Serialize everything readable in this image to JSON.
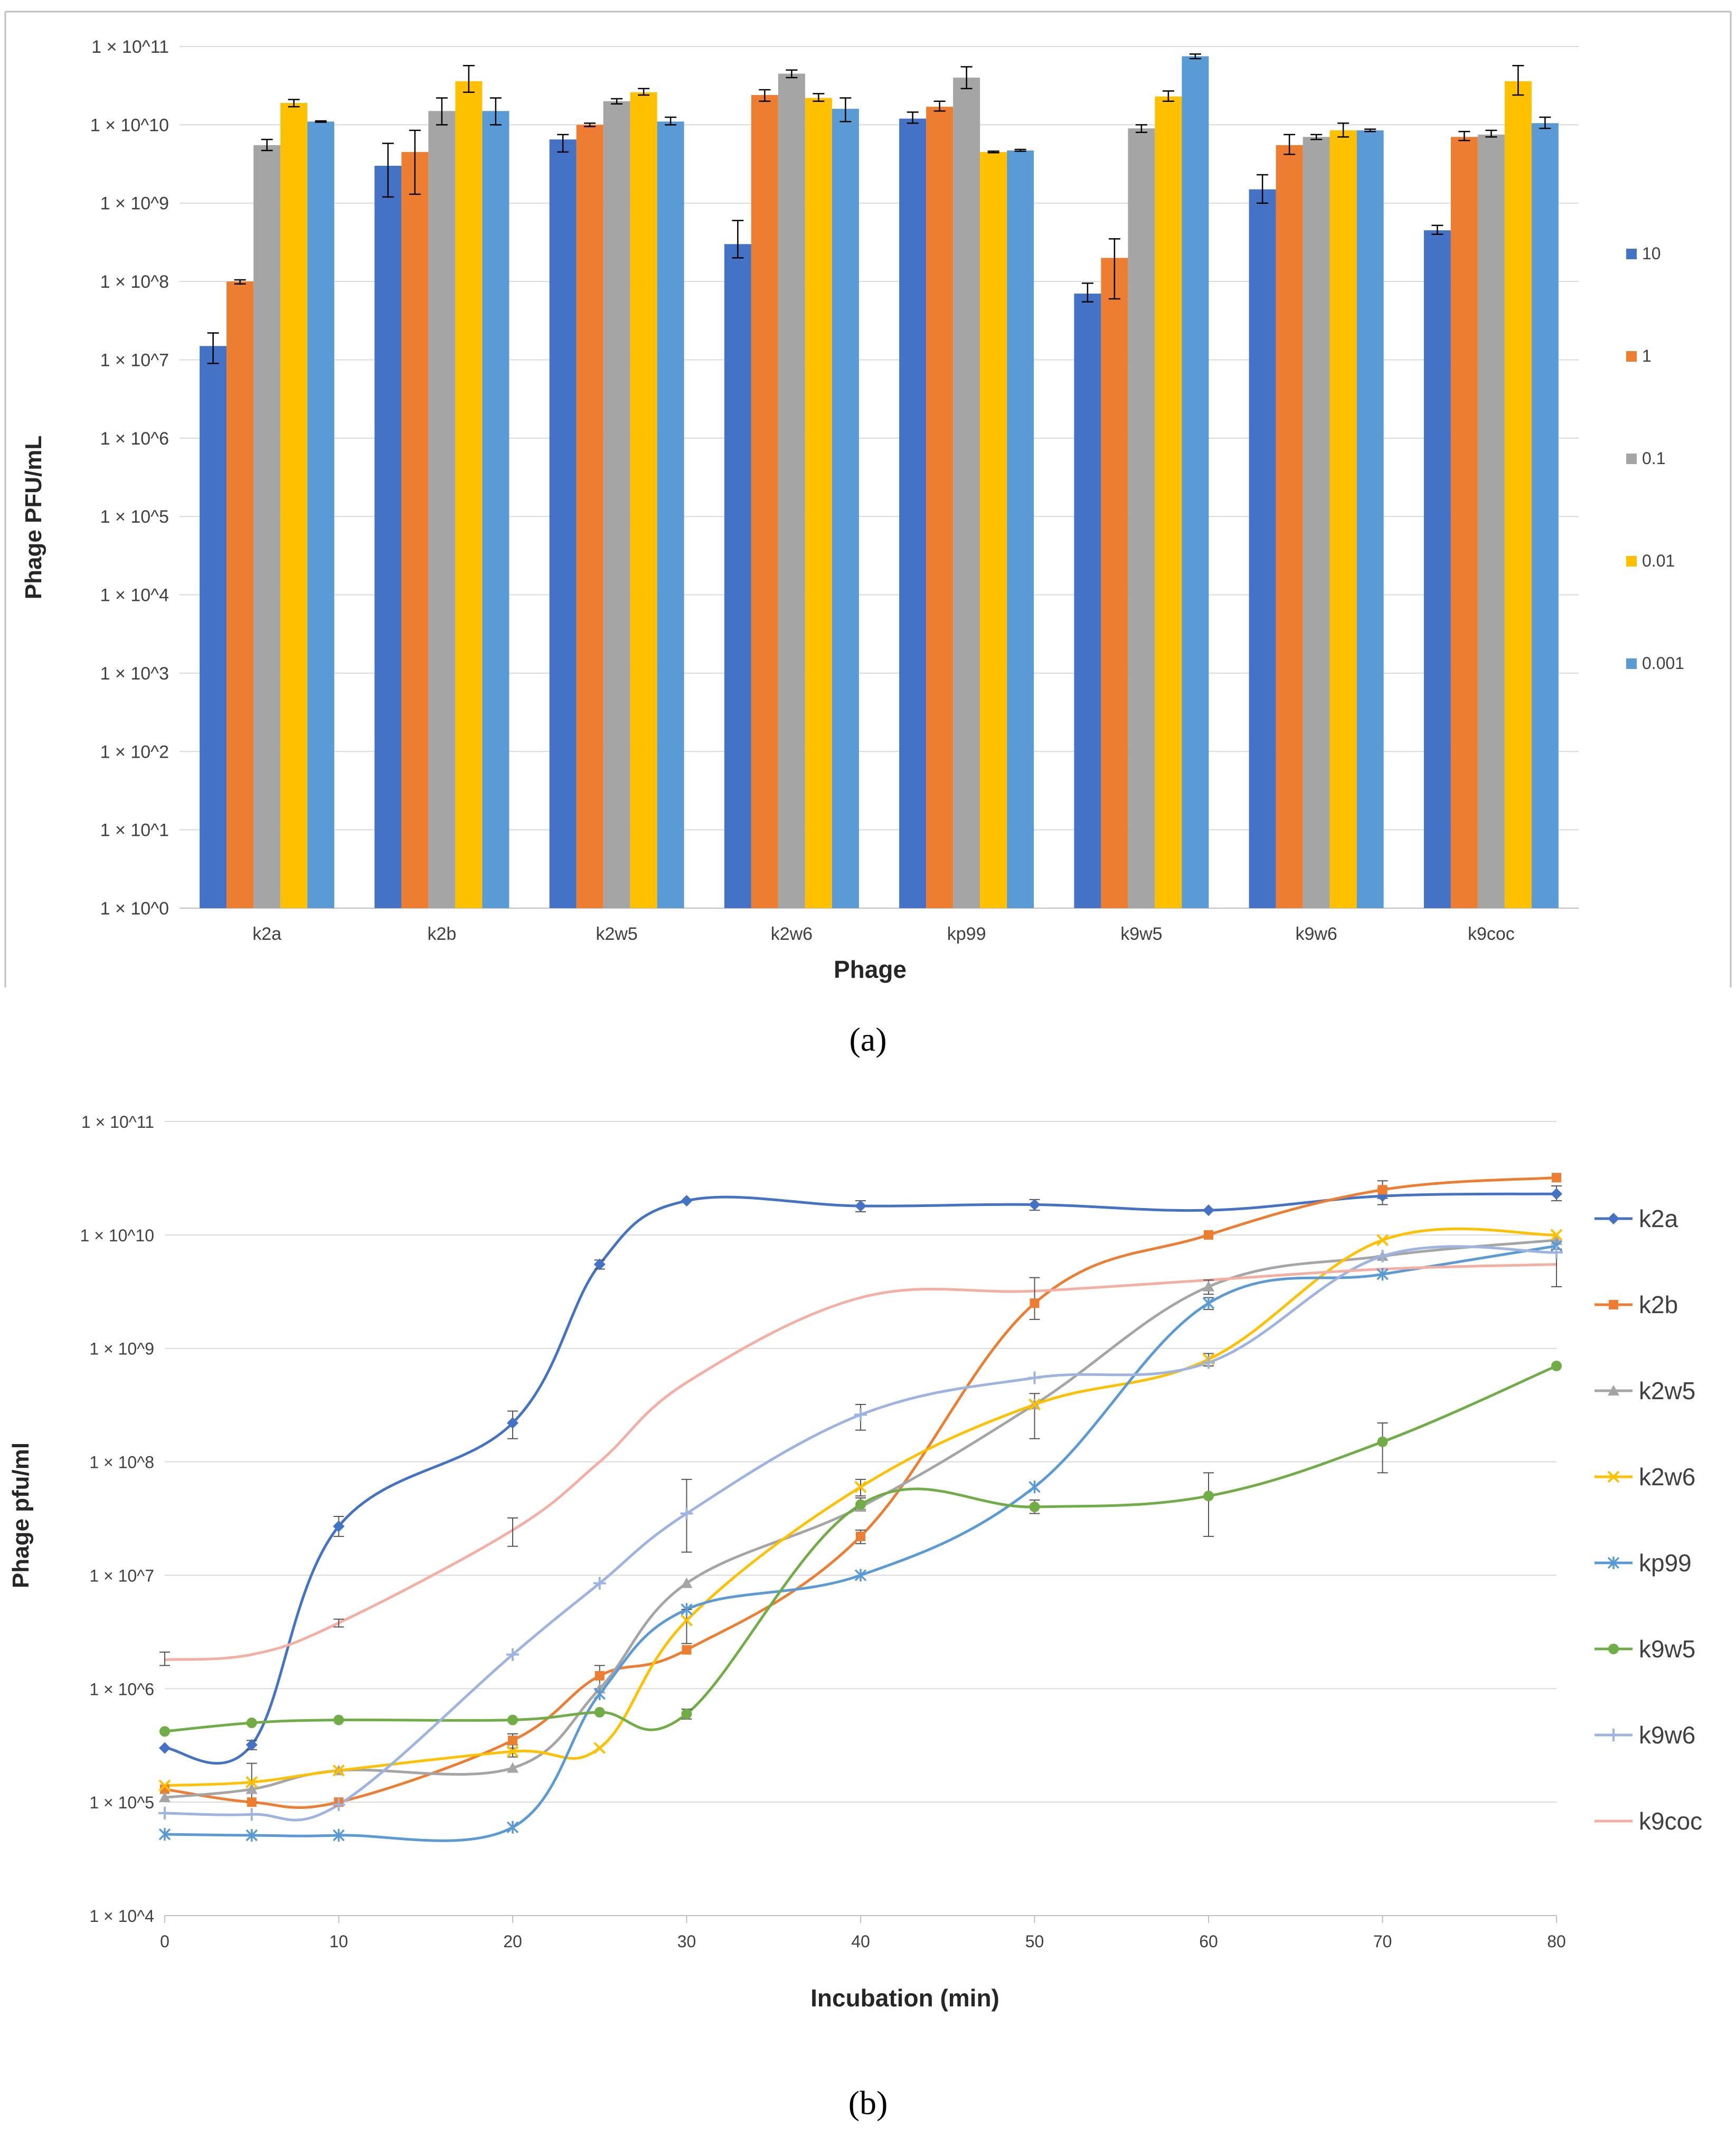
{
  "figure": {
    "panel_a_label": "(a)",
    "panel_b_label": "(b)"
  },
  "colors": {
    "blue": "#4472C4",
    "orange": "#ED7D31",
    "gray": "#A5A5A5",
    "gold": "#FFC000",
    "lightblue": "#5B9BD5",
    "green": "#70AD47",
    "periwinkle": "#9DB3E0",
    "pink": "#F4AEA2",
    "grid": "#D9D9D9",
    "axis": "#BFBFBF",
    "text": "#404040"
  },
  "chart_data": [
    {
      "type": "bar",
      "scale": "log10",
      "title": "",
      "xlabel": "Phage",
      "ylabel": "Phage PFU/mL",
      "ylim": [
        1,
        100000000000
      ],
      "y_ticks": [
        {
          "value": 1,
          "label": "1 × 10^0"
        },
        {
          "value": 10,
          "label": "1 × 10^1"
        },
        {
          "value": 100,
          "label": "1 × 10^2"
        },
        {
          "value": 1000,
          "label": "1 × 10^3"
        },
        {
          "value": 10000,
          "label": "1 × 10^4"
        },
        {
          "value": 100000,
          "label": "1 × 10^5"
        },
        {
          "value": 1000000,
          "label": "1 × 10^6"
        },
        {
          "value": 10000000,
          "label": "1 × 10^7"
        },
        {
          "value": 100000000,
          "label": "1 × 10^8"
        },
        {
          "value": 1000000000,
          "label": "1 × 10^9"
        },
        {
          "value": 10000000000,
          "label": "1 × 10^10"
        },
        {
          "value": 100000000000,
          "label": "1 × 10^11"
        }
      ],
      "categories": [
        "k2a",
        "k2b",
        "k2w5",
        "k2w6",
        "kp99",
        "k9w5",
        "k9w6",
        "k9coc"
      ],
      "legend_position": "right",
      "series": [
        {
          "name": "10",
          "color": "#4472C4",
          "values": [
            15000000,
            3000000000,
            6500000000,
            300000000,
            12000000000,
            70000000,
            1500000000,
            450000000
          ],
          "err_low": [
            9000000,
            1200000000,
            4500000000,
            200000000,
            10500000000,
            55000000,
            1000000000,
            400000000
          ],
          "err_high": [
            22000000,
            5800000000,
            7500000000,
            600000000,
            14500000000,
            95000000,
            2300000000,
            520000000
          ]
        },
        {
          "name": "1",
          "color": "#ED7D31",
          "values": [
            100000000,
            4500000000,
            10000000000,
            24000000000,
            17000000000,
            200000000,
            5500000000,
            7000000000
          ],
          "err_low": [
            93000000,
            1300000000,
            9500000000,
            20000000000,
            15000000000,
            60000000,
            4200000000,
            6300000000
          ],
          "err_high": [
            105000000,
            8500000000,
            10500000000,
            28000000000,
            20000000000,
            350000000,
            7500000000,
            8200000000
          ],
          "note": ""
        },
        {
          "name": "0.1",
          "color": "#A5A5A5",
          "values": [
            5500000000,
            15000000000,
            20000000000,
            45000000000,
            40000000000,
            9000000000,
            7000000000,
            7500000000
          ],
          "err_low": [
            4700000000,
            10000000000,
            18500000000,
            40000000000,
            29000000000,
            8000000000,
            6500000000,
            7000000000
          ],
          "err_high": [
            6500000000,
            22000000000,
            21500000000,
            50000000000,
            55000000000,
            10000000000,
            7500000000,
            8500000000
          ]
        },
        {
          "name": "0.01",
          "color": "#FFC000",
          "values": [
            19000000000,
            36000000000,
            26000000000,
            22000000000,
            4500000000,
            23000000000,
            8500000000,
            36000000000
          ],
          "err_low": [
            17000000000,
            26000000000,
            24000000000,
            20000000000,
            4400000000,
            20000000000,
            7000000000,
            24000000000
          ],
          "err_high": [
            21000000000,
            57000000000,
            29000000000,
            25000000000,
            4600000000,
            27000000000,
            10500000000,
            57000000000
          ]
        },
        {
          "name": "0.001",
          "color": "#5B9BD5",
          "values": [
            11000000000,
            15000000000,
            11000000000,
            16000000000,
            4700000000,
            75000000000,
            8500000000,
            10500000000
          ],
          "err_low": [
            10800000000,
            10000000000,
            10000000000,
            11000000000,
            4600000000,
            70000000000,
            8200000000,
            9000000000
          ],
          "err_high": [
            11200000000,
            22000000000,
            12500000000,
            22000000000,
            4850000000,
            80000000000,
            8800000000,
            12500000000
          ]
        }
      ]
    },
    {
      "type": "line",
      "scale": "log10",
      "title": "",
      "xlabel": "Incubation (min)",
      "ylabel": "Phage pfu/ml",
      "xlim": [
        0,
        80
      ],
      "x_ticks": [
        0,
        10,
        20,
        30,
        40,
        50,
        60,
        70,
        80
      ],
      "ylim": [
        10000,
        100000000000
      ],
      "y_ticks": [
        {
          "value": 10000,
          "label": "1 × 10^4"
        },
        {
          "value": 100000,
          "label": "1 × 10^5"
        },
        {
          "value": 1000000,
          "label": "1 × 10^6"
        },
        {
          "value": 10000000,
          "label": "1 × 10^7"
        },
        {
          "value": 100000000,
          "label": "1 × 10^8"
        },
        {
          "value": 1000000000,
          "label": "1 × 10^9"
        },
        {
          "value": 10000000000,
          "label": "1 × 10^10"
        },
        {
          "value": 100000000000,
          "label": "1 × 10^11"
        }
      ],
      "legend_position": "right",
      "x": [
        0,
        5,
        10,
        20,
        25,
        30,
        40,
        50,
        60,
        70,
        80
      ],
      "series": [
        {
          "name": "k2a",
          "color": "#4472C4",
          "marker": "diamond",
          "values": [
            300000,
            320000,
            27000000,
            220000000,
            5500000000,
            20000000000,
            18000000000,
            18500000000,
            16500000000,
            22000000000,
            23000000000
          ],
          "err_low": [
            null,
            290000,
            22000000,
            160000000,
            5000000000,
            null,
            16000000000,
            16500000000,
            null,
            18500000000,
            20000000000
          ],
          "err_high": [
            null,
            350000,
            33000000,
            280000000,
            6000000000,
            null,
            20000000000,
            20500000000,
            null,
            26000000000,
            27000000000
          ]
        },
        {
          "name": "k2b",
          "color": "#ED7D31",
          "marker": "square",
          "values": [
            130000,
            100000,
            100000,
            350000,
            1300000,
            2200000,
            22000000,
            2500000000,
            10000000000,
            25000000000,
            32000000000
          ],
          "err_low": [
            null,
            null,
            null,
            300000,
            1000000,
            null,
            19000000,
            1800000000,
            null,
            21000000000,
            null
          ],
          "err_high": [
            null,
            null,
            null,
            400000,
            1600000,
            null,
            25000000,
            4200000000,
            null,
            30000000000,
            null
          ]
        },
        {
          "name": "k2w5",
          "color": "#A5A5A5",
          "marker": "triangle",
          "values": [
            110000,
            130000,
            190000,
            200000,
            1000000,
            8500000,
            40000000,
            320000000,
            3500000000,
            6500000000,
            9000000000
          ],
          "err_low": [
            null,
            100000,
            null,
            null,
            null,
            null,
            null,
            160000000,
            3000000000,
            null,
            null
          ],
          "err_high": [
            null,
            220000,
            null,
            null,
            null,
            null,
            null,
            400000000,
            4000000000,
            null,
            null
          ]
        },
        {
          "name": "k2w6",
          "color": "#FFC000",
          "marker": "x",
          "values": [
            140000,
            150000,
            190000,
            280000,
            300000,
            4000000,
            60000000,
            320000000,
            800000000,
            9000000000,
            10000000000
          ],
          "err_low": [
            null,
            null,
            null,
            250000,
            null,
            2500000,
            50000000,
            null,
            700000000,
            null,
            null
          ],
          "err_high": [
            null,
            null,
            null,
            320000,
            null,
            5000000,
            70000000,
            null,
            900000000,
            null,
            null
          ]
        },
        {
          "name": "kp99",
          "color": "#5B9BD5",
          "marker": "star",
          "values": [
            52000,
            51000,
            51000,
            60000,
            900000,
            5000000,
            10000000,
            60000000,
            2500000000,
            4500000000,
            8000000000
          ],
          "err_low": [
            null,
            null,
            null,
            null,
            null,
            null,
            null,
            null,
            2200000000,
            null,
            null
          ],
          "err_high": [
            null,
            null,
            null,
            null,
            null,
            null,
            null,
            null,
            2800000000,
            null,
            null
          ]
        },
        {
          "name": "k9w5",
          "color": "#70AD47",
          "marker": "circle",
          "values": [
            420000,
            500000,
            530000,
            530000,
            620000,
            600000,
            42000000,
            40000000,
            50000000,
            150000000,
            700000000
          ],
          "err_low": [
            null,
            null,
            null,
            null,
            null,
            540000,
            38000000,
            35000000,
            22000000,
            80000000,
            null
          ],
          "err_high": [
            null,
            null,
            null,
            null,
            null,
            660000,
            48000000,
            46000000,
            80000000,
            220000000,
            null
          ]
        },
        {
          "name": "k9w6",
          "color": "#9DB3E0",
          "marker": "plus",
          "values": [
            80000,
            78000,
            95000,
            2000000,
            8500000,
            35000000,
            260000000,
            550000000,
            750000000,
            6500000000,
            7000000000
          ],
          "err_low": [
            null,
            null,
            null,
            null,
            null,
            16000000,
            190000000,
            null,
            null,
            null,
            3500000000
          ],
          "err_high": [
            null,
            null,
            null,
            null,
            null,
            70000000,
            320000000,
            null,
            null,
            null,
            7500000000
          ]
        },
        {
          "name": "k9coc",
          "color": "#F4AEA2",
          "marker": "none",
          "values": [
            1800000,
            2000000,
            3800000,
            25000000,
            100000000,
            500000000,
            2800000000,
            3200000000,
            4000000000,
            5000000000,
            5500000000
          ],
          "err_low": [
            1600000,
            null,
            3500000,
            18000000,
            null,
            null,
            null,
            null,
            null,
            null,
            null
          ],
          "err_high": [
            2100000,
            null,
            4100000,
            32000000,
            null,
            null,
            null,
            null,
            null,
            null,
            null
          ]
        }
      ]
    }
  ]
}
